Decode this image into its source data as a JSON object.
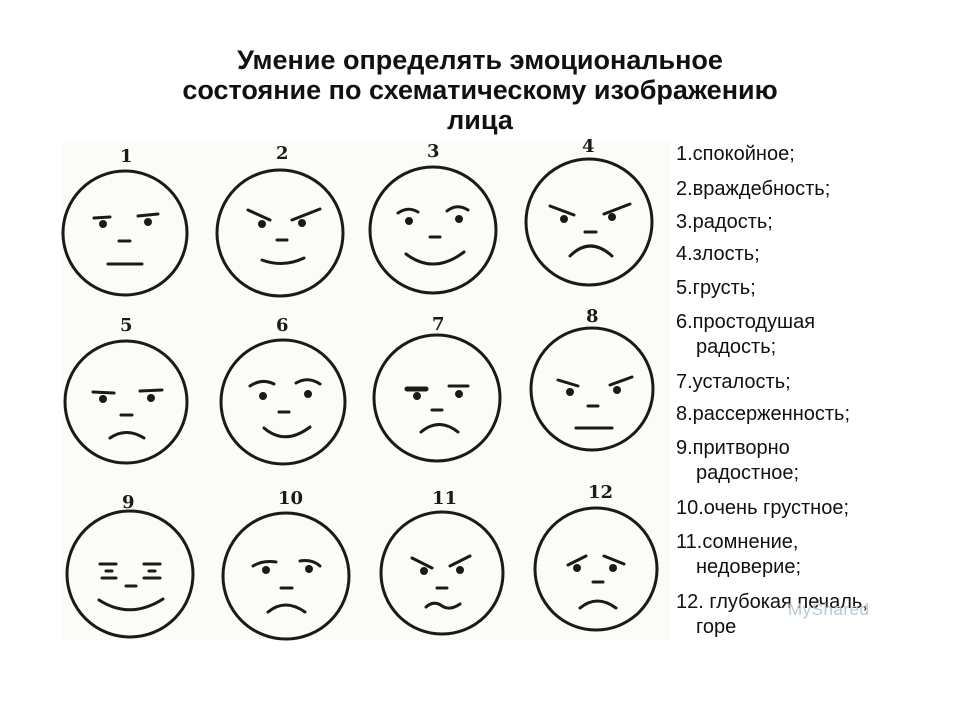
{
  "slide": {
    "title_line1": "Умение определять эмоциональное",
    "title_line2": "состояние по схематическому изображению",
    "title_line3": "лица"
  },
  "faces": [
    {
      "number": "1",
      "expression": "calm-face-icon"
    },
    {
      "number": "2",
      "expression": "hostile-face-icon"
    },
    {
      "number": "3",
      "expression": "happy-face-icon"
    },
    {
      "number": "4",
      "expression": "angry-face-icon"
    },
    {
      "number": "5",
      "expression": "sad-face-icon"
    },
    {
      "number": "6",
      "expression": "naive-joy-face-icon"
    },
    {
      "number": "7",
      "expression": "tired-face-icon"
    },
    {
      "number": "8",
      "expression": "irritated-face-icon"
    },
    {
      "number": "9",
      "expression": "fake-joy-face-icon"
    },
    {
      "number": "10",
      "expression": "very-sad-face-icon"
    },
    {
      "number": "11",
      "expression": "doubt-face-icon"
    },
    {
      "number": "12",
      "expression": "grief-face-icon"
    }
  ],
  "legend": [
    {
      "line1": "1.спокойное;"
    },
    {
      "line1": "2.враждебность;"
    },
    {
      "line1": "3.радость;"
    },
    {
      "line1": "4.злость;"
    },
    {
      "line1": "5.грусть;"
    },
    {
      "line1": "6.простодушая",
      "line2": "радость;"
    },
    {
      "line1": "7.усталость;"
    },
    {
      "line1": "8.рассерженность;"
    },
    {
      "line1": "9.притворно",
      "line2": "радостное;"
    },
    {
      "line1": "10.очень грустное;"
    },
    {
      "line1": "11.сомнение,",
      "line2": "недоверие;"
    },
    {
      "line1": "12. глубокая печаль,",
      "line2": "горе"
    }
  ],
  "watermark": "MyShared"
}
